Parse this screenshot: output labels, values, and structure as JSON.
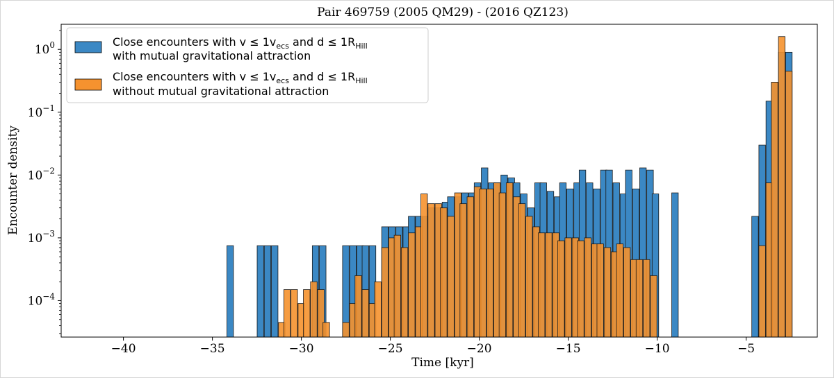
{
  "chart_data": {
    "type": "bar",
    "title": "Pair 469759 (2005 QM29) - (2016 QZ123)",
    "xlabel": "Time [kyr]",
    "ylabel": "Encounter density",
    "xlim": [
      -43.5,
      -1.0
    ],
    "ylim_log10": [
      -4.58,
      0.4
    ],
    "yscale": "log",
    "bin_width": 0.369,
    "x_ticks": [
      -40,
      -35,
      -30,
      -25,
      -20,
      -15,
      -10,
      -5
    ],
    "x_tick_labels": [
      "−40",
      "−35",
      "−30",
      "−25",
      "−20",
      "−15",
      "−10",
      "−5"
    ],
    "y_ticks": [
      0.0001,
      0.001,
      0.01,
      0.1,
      1
    ],
    "y_tick_labels": [
      {
        "base": "10",
        "exp": "−4"
      },
      {
        "base": "10",
        "exp": "−3"
      },
      {
        "base": "10",
        "exp": "−2"
      },
      {
        "base": "10",
        "exp": "−1"
      },
      {
        "base": "10",
        "exp": "0"
      }
    ],
    "legend": {
      "position": "upper-left",
      "entries": [
        {
          "line1": "Close encounters with v ≤ 1v",
          "line1_sub": "ecs",
          "line1_mid": " and d ≤ 1R",
          "line1_sub2": "Hill",
          "line2": "with mutual gravitational attraction",
          "color": "#3b88c4"
        },
        {
          "line1": "Close encounters with v ≤ 1v",
          "line1_sub": "ecs",
          "line1_mid": " and d ≤ 1R",
          "line1_sub2": "Hill",
          "line2": "without mutual gravitational attraction",
          "color": "#f5922f"
        }
      ]
    },
    "series": [
      {
        "name": "Close encounters with v ≤ 1vecs and d ≤ 1RHill with mutual gravitational attraction",
        "color": "#3b88c4",
        "x": [
          -34.0,
          -32.3,
          -31.9,
          -31.5,
          -29.2,
          -28.8,
          -27.5,
          -27.1,
          -26.7,
          -26.4,
          -26.0,
          -25.3,
          -24.9,
          -24.5,
          -24.1,
          -23.8,
          -23.4,
          -23.0,
          -22.7,
          -22.3,
          -21.9,
          -21.6,
          -21.2,
          -20.8,
          -20.4,
          -20.1,
          -19.7,
          -19.3,
          -19.0,
          -18.6,
          -18.2,
          -17.9,
          -17.5,
          -17.1,
          -16.7,
          -16.4,
          -16.0,
          -15.6,
          -15.3,
          -14.9,
          -14.5,
          -14.2,
          -13.8,
          -13.4,
          -13.0,
          -12.7,
          -12.3,
          -11.9,
          -11.6,
          -11.2,
          -10.8,
          -10.4,
          -10.1,
          -9.0,
          -4.5,
          -4.1,
          -3.7,
          -3.4,
          -3.0,
          -2.6
        ],
        "values": [
          0.00075,
          0.00075,
          0.00075,
          0.00075,
          0.00075,
          0.00075,
          0.00075,
          0.00075,
          0.00075,
          0.00075,
          0.00075,
          0.0015,
          0.0015,
          0.0015,
          0.0015,
          0.0022,
          0.0022,
          0.0022,
          0.003,
          0.003,
          0.0037,
          0.0045,
          0.0045,
          0.0052,
          0.0052,
          0.0075,
          0.013,
          0.0075,
          0.0075,
          0.01,
          0.009,
          0.0075,
          0.005,
          0.003,
          0.0075,
          0.0075,
          0.0055,
          0.0045,
          0.0075,
          0.006,
          0.0075,
          0.012,
          0.0075,
          0.006,
          0.012,
          0.012,
          0.0075,
          0.005,
          0.012,
          0.006,
          0.013,
          0.012,
          0.005,
          0.0052,
          0.0022,
          0.03,
          0.15,
          0.3,
          0.9,
          0.9
        ]
      },
      {
        "name": "Close encounters with v ≤ 1vecs and d ≤ 1RHill without mutual gravitational attraction",
        "color": "#f5922f",
        "x": [
          -31.1,
          -30.8,
          -30.4,
          -30.0,
          -29.7,
          -29.3,
          -28.9,
          -28.6,
          -27.5,
          -27.1,
          -26.8,
          -26.4,
          -26.0,
          -25.7,
          -25.3,
          -24.9,
          -24.6,
          -24.2,
          -23.8,
          -23.4,
          -23.1,
          -22.7,
          -22.3,
          -22.0,
          -21.6,
          -21.2,
          -20.9,
          -20.5,
          -20.1,
          -19.8,
          -19.4,
          -19.0,
          -18.7,
          -18.3,
          -17.9,
          -17.6,
          -17.2,
          -16.8,
          -16.5,
          -16.1,
          -15.7,
          -15.4,
          -15.0,
          -14.6,
          -14.3,
          -13.9,
          -13.5,
          -13.2,
          -12.8,
          -12.4,
          -12.1,
          -11.7,
          -11.3,
          -11.0,
          -10.6,
          -10.2,
          -4.1,
          -3.7,
          -3.4,
          -3.0,
          -2.6
        ],
        "values": [
          4.5e-05,
          0.00015,
          0.00015,
          9e-05,
          0.00015,
          0.0002,
          0.00015,
          4.5e-05,
          4.5e-05,
          9e-05,
          0.00025,
          0.00015,
          9e-05,
          0.0002,
          0.0007,
          0.001,
          0.0011,
          0.0007,
          0.0012,
          0.0015,
          0.005,
          0.0035,
          0.0035,
          0.003,
          0.0022,
          0.0052,
          0.0035,
          0.0045,
          0.0065,
          0.006,
          0.006,
          0.0075,
          0.0052,
          0.0075,
          0.0045,
          0.0035,
          0.0022,
          0.0015,
          0.0012,
          0.0012,
          0.0012,
          0.0009,
          0.001,
          0.001,
          0.0009,
          0.001,
          0.0008,
          0.0008,
          0.0007,
          0.0006,
          0.0008,
          0.0007,
          0.00045,
          0.00045,
          0.00045,
          0.00025,
          0.00075,
          0.0075,
          0.3,
          1.6,
          0.45
        ]
      }
    ]
  }
}
